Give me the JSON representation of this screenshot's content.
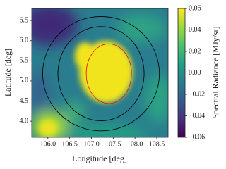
{
  "chart_data": {
    "type": "heatmap",
    "x_label": "Longitude [deg]",
    "y_label": "Latitude [deg]",
    "colorbar_label": "Spectral Radiance [MJy/sr]",
    "colormap": "viridis",
    "xlim": [
      105.63,
      108.76
    ],
    "xticks": [
      {
        "value": 106,
        "label": "106.0"
      },
      {
        "value": 106.5,
        "label": "106.5"
      },
      {
        "value": 107,
        "label": "107.0"
      },
      {
        "value": 107.5,
        "label": "107.5"
      },
      {
        "value": 108,
        "label": "108.0"
      },
      {
        "value": 108.5,
        "label": "108.5"
      }
    ],
    "ylim": [
      3.6,
      6.8
    ],
    "yticks": [
      {
        "value": 4,
        "label": "4.0"
      },
      {
        "value": 4.5,
        "label": "4.5"
      },
      {
        "value": 5,
        "label": "5.0"
      },
      {
        "value": 5.5,
        "label": "5.5"
      },
      {
        "value": 6,
        "label": "6.0"
      },
      {
        "value": 6.5,
        "label": "6.5"
      }
    ],
    "clim": [
      -0.06,
      0.06
    ],
    "cticks": [
      {
        "value": -0.06,
        "label": "−0.06"
      },
      {
        "value": -0.04,
        "label": "−0.04"
      },
      {
        "value": -0.02,
        "label": "−0.02"
      },
      {
        "value": 0,
        "label": "0.00"
      },
      {
        "value": 0.02,
        "label": "0.02"
      },
      {
        "value": 0.04,
        "label": "0.04"
      },
      {
        "value": 0.06,
        "label": "0.06"
      }
    ],
    "circles": [
      {
        "center": [
          107.22,
          5.18
        ],
        "rx": 1.34,
        "ry": 1.42,
        "color": "#000000"
      },
      {
        "center": [
          107.22,
          5.18
        ],
        "rx": 0.99,
        "ry": 1.17,
        "color": "#000000"
      },
      {
        "center": [
          107.4,
          5.18
        ],
        "rx": 0.52,
        "ry": 0.74,
        "color": "#e01010"
      }
    ]
  }
}
